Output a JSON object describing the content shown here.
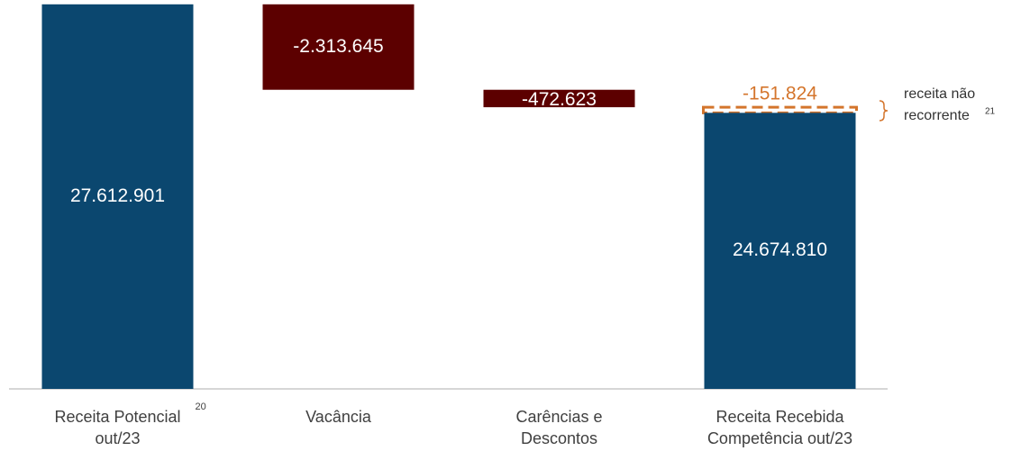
{
  "chart_data": {
    "type": "waterfall",
    "categories": [
      [
        "Receita Potencial",
        "out/23"
      ],
      [
        "Vacância"
      ],
      [
        "Carências e",
        "Descontos"
      ],
      [
        "Receita Recebida",
        "Competência out/23"
      ]
    ],
    "category_superscripts": [
      "20",
      null,
      null,
      null
    ],
    "values": [
      27612901,
      -2313645,
      -472623,
      24674810
    ],
    "value_labels": [
      "27.612.901",
      "-2.313.645",
      "-472.623",
      "24.674.810"
    ],
    "totals": [
      true,
      false,
      false,
      true
    ],
    "colors": [
      "#0b476f",
      "#5c0000",
      "#5c0000",
      "#0b476f"
    ],
    "non_recurring": {
      "value": -151824,
      "value_label": "-151.824",
      "color": "#d4752c"
    },
    "annotation": {
      "lines": [
        "receita não",
        "recorrente"
      ],
      "superscript": "21"
    },
    "ylim": [
      17200000,
      27730000
    ]
  }
}
